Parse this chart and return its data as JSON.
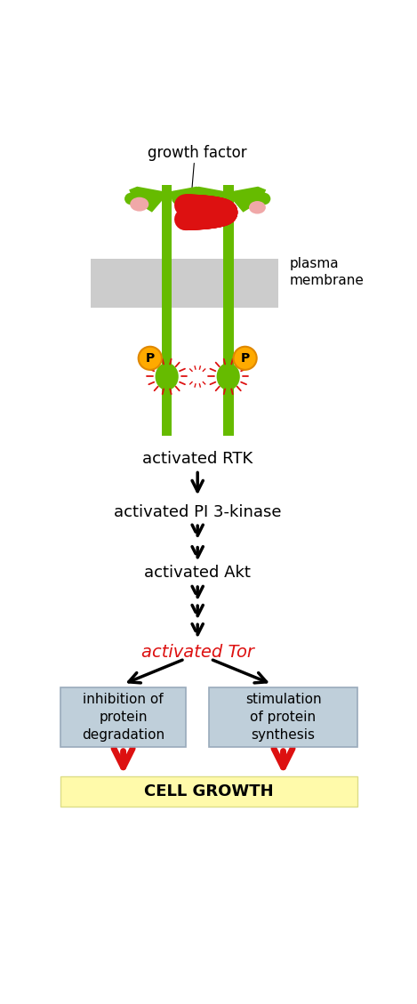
{
  "fig_width": 4.69,
  "fig_height": 11.29,
  "dpi": 100,
  "bg_color": "#ffffff",
  "green_color": "#66bb00",
  "red_color": "#dd1111",
  "pink_color": "#f0a8a8",
  "orange_color": "#ffaa00",
  "orange_edge": "#e08800",
  "yellow_color": "#fffaaa",
  "yellow_edge": "#dddd88",
  "blue_box_color": "#bfcfda",
  "blue_box_edge": "#99aabb",
  "plasma_membrane_color": "#cccccc",
  "text_rtk": "activated RTK",
  "text_pi3k": "activated PI 3-kinase",
  "text_akt": "activated Akt",
  "text_tor": "activated Tor",
  "text_inhibit": "inhibition of\nprotein\ndegradation",
  "text_stim": "stimulation\nof protein\nsynthesis",
  "text_growth": "CELL GROWTH",
  "text_gf": "growth factor",
  "text_pm": "plasma\nmembrane",
  "xlim": [
    0,
    10
  ],
  "ylim": [
    0,
    24
  ]
}
